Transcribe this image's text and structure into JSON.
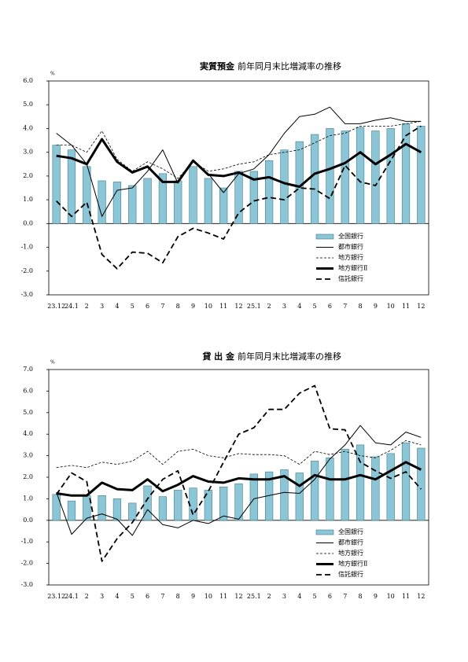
{
  "chart_data": [
    {
      "type": "bar",
      "title": "実質預金",
      "subtitle": "前年同月末比増減率の推移",
      "y_unit": "%",
      "categories": [
        "23.12",
        "24.1",
        "2",
        "3",
        "4",
        "5",
        "6",
        "7",
        "8",
        "9",
        "10",
        "11",
        "12",
        "25.1",
        "2",
        "3",
        "4",
        "5",
        "6",
        "7",
        "8",
        "9",
        "10",
        "11",
        "12"
      ],
      "ylim": [
        -3,
        6
      ],
      "yticks": [
        {
          "value": -3,
          "label": "-3.0"
        },
        {
          "value": -2,
          "label": "-2.0"
        },
        {
          "value": -1,
          "label": "-1.0"
        },
        {
          "value": 0,
          "label": "0.0"
        },
        {
          "value": 1,
          "label": "1.0"
        },
        {
          "value": 2,
          "label": "2.0"
        },
        {
          "value": 3,
          "label": "3.0"
        },
        {
          "value": 4,
          "label": "4.0"
        },
        {
          "value": 5,
          "label": "5.0"
        },
        {
          "value": 6,
          "label": "6.0"
        }
      ],
      "grid": false,
      "legend": "lower right",
      "series": [
        {
          "name": "全国銀行",
          "type": "bar",
          "color": "#8cc6d6",
          "values": [
            3.3,
            3.1,
            2.4,
            1.8,
            1.75,
            1.6,
            1.9,
            2.1,
            1.8,
            2.4,
            1.9,
            1.5,
            2.2,
            2.2,
            2.65,
            3.1,
            3.45,
            3.75,
            4.0,
            3.9,
            4.05,
            3.9,
            4.0,
            4.2,
            4.1
          ]
        },
        {
          "name": "都市銀行",
          "type": "line",
          "color": "#000000",
          "width": 1,
          "dash": "none",
          "values": [
            3.8,
            3.3,
            2.5,
            0.3,
            1.4,
            1.5,
            2.2,
            3.1,
            1.7,
            2.6,
            2.1,
            1.3,
            2.1,
            2.3,
            2.9,
            3.8,
            4.5,
            4.6,
            4.9,
            4.2,
            4.2,
            4.35,
            4.45,
            4.3,
            4.3
          ]
        },
        {
          "name": "地方銀行",
          "type": "line",
          "color": "#000000",
          "width": 0.8,
          "dash": "3 2",
          "values": [
            3.3,
            3.3,
            3.0,
            3.9,
            2.7,
            2.2,
            2.6,
            2.3,
            1.9,
            2.6,
            2.2,
            2.3,
            2.5,
            2.6,
            2.9,
            3.0,
            3.1,
            3.4,
            3.7,
            3.8,
            4.1,
            4.1,
            4.1,
            4.2,
            4.3
          ]
        },
        {
          "name": "地方銀行Ⅱ",
          "type": "line",
          "color": "#000000",
          "width": 3,
          "dash": "none",
          "values": [
            2.85,
            2.75,
            2.5,
            3.55,
            2.6,
            2.15,
            2.4,
            1.75,
            1.75,
            2.65,
            2.05,
            2.0,
            2.15,
            1.85,
            1.95,
            1.7,
            1.55,
            2.1,
            2.3,
            2.55,
            3.0,
            2.5,
            2.9,
            3.35,
            3.0
          ]
        },
        {
          "name": "信託銀行",
          "type": "line",
          "color": "#000000",
          "width": 1.8,
          "dash": "7 4",
          "values": [
            0.95,
            0.3,
            0.9,
            -1.3,
            -1.9,
            -1.2,
            -1.25,
            -1.65,
            -0.55,
            -0.2,
            -0.4,
            -0.65,
            0.45,
            0.95,
            1.1,
            1.0,
            1.5,
            1.45,
            1.05,
            2.45,
            1.75,
            1.6,
            2.65,
            3.7,
            4.1
          ]
        }
      ]
    },
    {
      "type": "bar",
      "title": "貸 出 金",
      "subtitle": "前年同月末比増減率の推移",
      "y_unit": "%",
      "categories": [
        "23.12",
        "24.1",
        "2",
        "3",
        "4",
        "5",
        "6",
        "7",
        "8",
        "9",
        "10",
        "11",
        "12",
        "25.1",
        "2",
        "3",
        "4",
        "5",
        "6",
        "7",
        "8",
        "9",
        "10",
        "11",
        "12"
      ],
      "ylim": [
        -3,
        7
      ],
      "yticks": [
        {
          "value": -3,
          "label": "-3.0"
        },
        {
          "value": -2,
          "label": "-2.0"
        },
        {
          "value": -1,
          "label": "-1.0"
        },
        {
          "value": 0,
          "label": "0.0"
        },
        {
          "value": 1,
          "label": "1.0"
        },
        {
          "value": 2,
          "label": "2.0"
        },
        {
          "value": 3,
          "label": "3.0"
        },
        {
          "value": 4,
          "label": "4.0"
        },
        {
          "value": 5,
          "label": "5.0"
        },
        {
          "value": 6,
          "label": "6.0"
        },
        {
          "value": 7,
          "label": "7.0"
        }
      ],
      "grid": false,
      "legend": "lower right",
      "series": [
        {
          "name": "全国銀行",
          "type": "bar",
          "color": "#8cc6d6",
          "values": [
            1.2,
            0.9,
            1.15,
            1.15,
            1.0,
            0.8,
            1.6,
            1.1,
            1.4,
            1.5,
            1.4,
            1.55,
            1.7,
            2.15,
            2.25,
            2.35,
            2.2,
            2.75,
            2.9,
            3.3,
            3.5,
            2.95,
            3.1,
            3.6,
            3.35
          ]
        },
        {
          "name": "都市銀行",
          "type": "line",
          "color": "#000000",
          "width": 1,
          "dash": "none",
          "values": [
            1.3,
            -0.65,
            0.1,
            0.3,
            0.05,
            -0.7,
            0.5,
            -0.2,
            -0.35,
            0.0,
            -0.15,
            0.2,
            0.05,
            1.0,
            1.15,
            1.3,
            1.25,
            1.9,
            2.85,
            3.5,
            4.4,
            3.6,
            3.5,
            4.1,
            3.85
          ]
        },
        {
          "name": "地方銀行",
          "type": "line",
          "color": "#000000",
          "width": 0.8,
          "dash": "3 2",
          "values": [
            2.45,
            2.55,
            2.45,
            2.7,
            2.6,
            2.75,
            3.2,
            2.6,
            3.2,
            3.3,
            3.0,
            2.9,
            3.1,
            3.05,
            3.05,
            3.0,
            2.6,
            3.2,
            3.05,
            3.2,
            3.0,
            2.9,
            3.25,
            3.7,
            3.5
          ]
        },
        {
          "name": "地方銀行Ⅱ",
          "type": "line",
          "color": "#000000",
          "width": 3,
          "dash": "none",
          "values": [
            1.25,
            1.15,
            1.15,
            1.75,
            1.45,
            1.4,
            1.9,
            1.35,
            1.65,
            2.05,
            1.8,
            1.75,
            1.95,
            1.9,
            1.9,
            2.05,
            1.6,
            2.1,
            1.9,
            1.9,
            2.1,
            1.9,
            2.3,
            2.7,
            2.35
          ]
        },
        {
          "name": "信託銀行",
          "type": "line",
          "color": "#000000",
          "width": 1.8,
          "dash": "7 4",
          "values": [
            1.2,
            2.2,
            1.8,
            -1.9,
            -0.85,
            -0.1,
            1.0,
            1.9,
            2.3,
            0.25,
            1.35,
            2.7,
            4.0,
            4.3,
            5.15,
            5.15,
            5.9,
            6.25,
            4.25,
            4.2,
            2.7,
            2.3,
            1.95,
            2.25,
            1.45
          ]
        }
      ]
    }
  ]
}
